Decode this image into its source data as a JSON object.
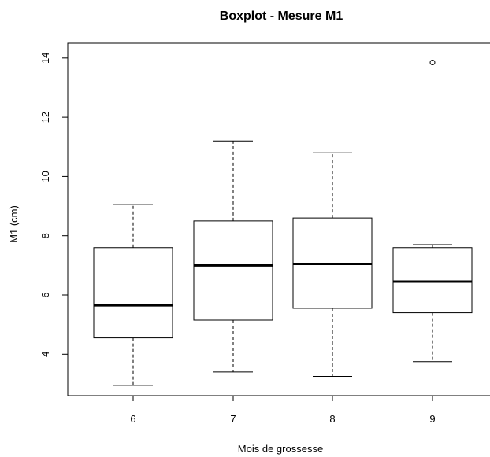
{
  "chart_data": {
    "type": "boxplot",
    "title": "Boxplot - Mesure M1",
    "xlabel": "Mois de grossesse",
    "ylabel": "M1 (cm)",
    "categories": [
      "6",
      "7",
      "8",
      "9"
    ],
    "ylim": [
      2.6,
      14.5
    ],
    "yticks": [
      4,
      6,
      8,
      10,
      12,
      14
    ],
    "grid": false,
    "boxes": [
      {
        "category": "6",
        "whisker_low": 2.95,
        "q1": 4.55,
        "median": 5.65,
        "q3": 7.6,
        "whisker_high": 9.05,
        "outliers": []
      },
      {
        "category": "7",
        "whisker_low": 3.4,
        "q1": 5.15,
        "median": 7.0,
        "q3": 8.5,
        "whisker_high": 11.2,
        "outliers": []
      },
      {
        "category": "8",
        "whisker_low": 3.25,
        "q1": 5.55,
        "median": 7.05,
        "q3": 8.6,
        "whisker_high": 10.8,
        "outliers": []
      },
      {
        "category": "9",
        "whisker_low": 3.75,
        "q1": 5.4,
        "median": 6.45,
        "q3": 7.6,
        "whisker_high": 7.7,
        "outliers": [
          13.85
        ]
      }
    ],
    "colors": {
      "box_fill": "#ffffff",
      "stroke": "#000000"
    }
  }
}
